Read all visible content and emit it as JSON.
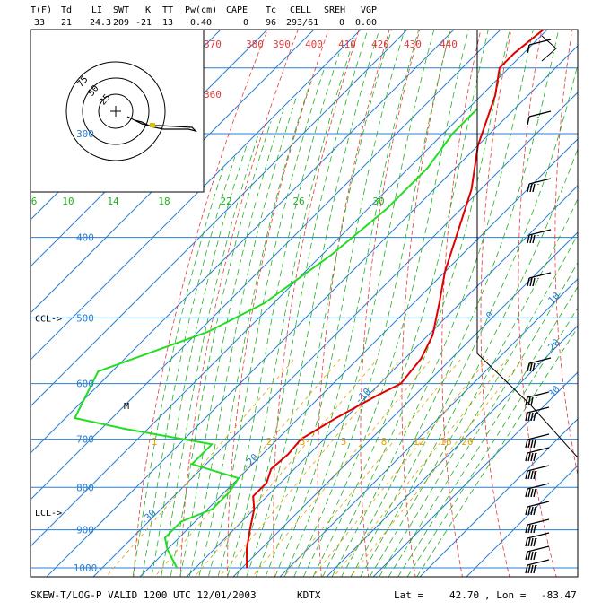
{
  "header": {
    "labels": [
      "T(F)",
      "Td",
      "LI",
      "SWT",
      "K",
      "TT",
      "Pw(cm)",
      "CAPE",
      "Tc",
      "CELL",
      "SREH",
      "VGP"
    ],
    "values": [
      "33",
      "21",
      "24.3",
      "209",
      "-21",
      "13",
      "0.40",
      "0",
      "96",
      "293/61",
      "0",
      "0.00"
    ]
  },
  "footer": {
    "title": "SKEW-T/LOG-P VALID 1200 UTC 12/01/2003",
    "station": "KDTX",
    "lat_label": "Lat =",
    "lat_value": "42.70",
    "lon_label": ", Lon =",
    "lon_value": "-83.47"
  },
  "hodograph": {
    "ring_labels": [
      "75",
      "50",
      "25"
    ]
  },
  "colors": {
    "isobar": "#2a7fd0",
    "isotherm": "#2a7fd0",
    "dry_adiabat": "#e23a3a",
    "moist_adiabat": "#20b020",
    "mixing_ratio": "#e0a000",
    "temperature": "#e00000",
    "dewpoint": "#22dd22",
    "frame": "#000000"
  },
  "chart_data": {
    "type": "line",
    "title": "SKEW-T/LOG-P VALID 1200 UTC 12/01/2003",
    "pressure_levels": [
      300,
      400,
      500,
      600,
      700,
      800,
      900,
      1000
    ],
    "pressure_labels": [
      "300",
      "400",
      "500",
      "600",
      "700",
      "800",
      "900",
      "1000"
    ],
    "level_markers": [
      {
        "label": "CCL->",
        "pressure": 500
      },
      {
        "label": "LCL->",
        "pressure": 820
      }
    ],
    "isotherm_labels": [
      {
        "text": "-30",
        "t": -30
      },
      {
        "text": "-20",
        "t": -20
      },
      {
        "text": "-10",
        "t": -10
      },
      {
        "text": "0",
        "t": 0
      },
      {
        "text": "10",
        "t": 10
      },
      {
        "text": "20",
        "t": 20
      },
      {
        "text": "30",
        "t": 30
      }
    ],
    "dry_adiabat_labels": [
      "370",
      "380",
      "390",
      "400",
      "410",
      "420",
      "430",
      "440",
      "360"
    ],
    "moist_adiabat_labels": [
      "6",
      "10",
      "14",
      "18",
      "22",
      "26",
      "30"
    ],
    "mixing_ratio_labels": [
      "1",
      "2",
      "3",
      "5",
      "8",
      "12",
      "16",
      "20"
    ],
    "temperature_profile": [
      [
        1000,
        1.0
      ],
      [
        950,
        -3.0
      ],
      [
        900,
        -6.5
      ],
      [
        850,
        -10.0
      ],
      [
        820,
        -13.0
      ],
      [
        790,
        -13.0
      ],
      [
        760,
        -15.0
      ],
      [
        730,
        -14.5
      ],
      [
        700,
        -15.0
      ],
      [
        660,
        -12.0
      ],
      [
        620,
        -8.0
      ],
      [
        600,
        -5.5
      ],
      [
        560,
        -6.5
      ],
      [
        525,
        -9.0
      ],
      [
        480,
        -14.5
      ],
      [
        440,
        -20.0
      ],
      [
        400,
        -25.0
      ],
      [
        350,
        -32.0
      ],
      [
        310,
        -40.0
      ],
      [
        270,
        -47.0
      ],
      [
        250,
        -52.0
      ],
      [
        240,
        -52.0
      ],
      [
        215,
        -50.0
      ],
      [
        195,
        -55.0
      ],
      [
        170,
        -55.0
      ]
    ],
    "dewpoint_profile": [
      [
        1000,
        -14.0
      ],
      [
        950,
        -20.0
      ],
      [
        920,
        -23.0
      ],
      [
        880,
        -23.0
      ],
      [
        850,
        -19.0
      ],
      [
        810,
        -19.0
      ],
      [
        780,
        -20.0
      ],
      [
        750,
        -33.0
      ],
      [
        710,
        -33.0
      ],
      [
        680,
        -55.0
      ],
      [
        660,
        -68.0
      ],
      [
        580,
        -73.0
      ],
      [
        520,
        -58.0
      ],
      [
        480,
        -52.0
      ],
      [
        420,
        -48.0
      ],
      [
        370,
        -46.0
      ],
      [
        330,
        -46.0
      ],
      [
        300,
        -48.0
      ],
      [
        280,
        -48.0
      ]
    ],
    "wind_label": "M"
  }
}
